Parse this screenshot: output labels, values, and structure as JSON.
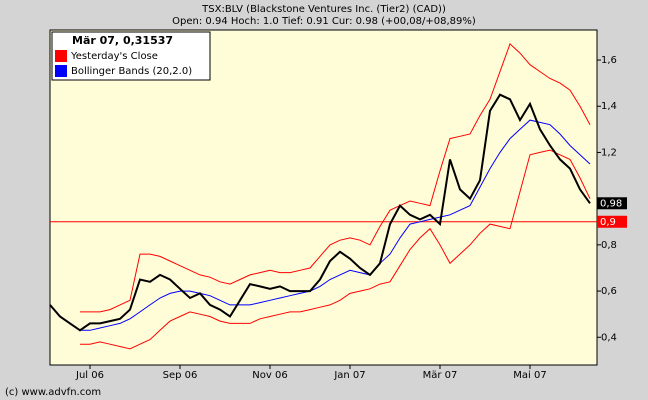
{
  "chart_data": {
    "type": "line",
    "title": "TSX:BLV (Blackstone Ventures Inc. (Tier2) (CAD))",
    "subtitle": "Open: 0.94 Hoch: 1.0 Tief: 0.91 Cur: 0.98 (+00,08/+08,89%)",
    "legend_header": "Mär 07, 0,31537",
    "footer": "(c) www.advfn.com",
    "categories": [
      null,
      null,
      null,
      null,
      "Jul 06",
      null,
      null,
      null,
      null,
      null,
      null,
      null,
      null,
      "Sep 06",
      null,
      null,
      null,
      null,
      null,
      null,
      null,
      null,
      "Nov 06",
      null,
      null,
      null,
      null,
      null,
      null,
      null,
      "Jan 07",
      null,
      null,
      null,
      null,
      null,
      null,
      null,
      null,
      "Mär 07",
      null,
      null,
      null,
      null,
      null,
      null,
      null,
      null,
      "Mai 07",
      null,
      null,
      null,
      null,
      null,
      null
    ],
    "ylim": [
      0.28,
      1.73
    ],
    "yticks": [
      {
        "value": 0.4,
        "label": "0,4"
      },
      {
        "value": 0.6,
        "label": "0,6"
      },
      {
        "value": 0.8,
        "label": "0,8"
      },
      {
        "value": 1.2,
        "label": "1,2"
      },
      {
        "value": 1.4,
        "label": "1,4"
      },
      {
        "value": 1.6,
        "label": "1,6"
      }
    ],
    "legend_position": "top-left",
    "series": [
      {
        "color": "#000000",
        "values": [
          0.54,
          0.49,
          0.46,
          0.43,
          0.46,
          0.46,
          0.47,
          0.48,
          0.52,
          0.65,
          0.64,
          0.67,
          0.65,
          0.61,
          0.57,
          0.59,
          0.54,
          0.52,
          0.49,
          0.56,
          0.63,
          0.62,
          0.61,
          0.62,
          0.6,
          0.6,
          0.6,
          0.65,
          0.73,
          0.77,
          0.74,
          0.7,
          0.67,
          0.72,
          0.89,
          0.97,
          0.93,
          0.91,
          0.93,
          0.89,
          1.17,
          1.04,
          1.0,
          1.08,
          1.38,
          1.45,
          1.43,
          1.34,
          1.41,
          1.3,
          1.23,
          1.17,
          1.13,
          1.04,
          0.98
        ]
      },
      {
        "name": "Bollinger Bands (20,2.0)",
        "color": "#0000ff",
        "values": [
          null,
          null,
          null,
          0.43,
          0.43,
          0.44,
          0.45,
          0.46,
          0.48,
          0.51,
          0.54,
          0.57,
          0.59,
          0.6,
          0.6,
          0.59,
          0.58,
          0.56,
          0.54,
          0.54,
          0.54,
          0.55,
          0.56,
          0.57,
          0.58,
          0.59,
          0.6,
          0.62,
          0.65,
          0.67,
          0.69,
          0.68,
          0.67,
          0.72,
          0.76,
          0.83,
          0.89,
          0.9,
          0.91,
          0.92,
          0.93,
          0.95,
          0.97,
          1.05,
          1.13,
          1.2,
          1.26,
          1.3,
          1.34,
          1.33,
          1.32,
          1.28,
          1.23,
          1.19,
          1.15
        ]
      },
      {
        "color": "#ff0000",
        "values": [
          null,
          null,
          null,
          0.51,
          0.51,
          0.51,
          0.52,
          0.54,
          0.56,
          0.76,
          0.76,
          0.75,
          0.73,
          0.71,
          0.69,
          0.67,
          0.66,
          0.64,
          0.63,
          0.65,
          0.67,
          0.68,
          0.69,
          0.68,
          0.68,
          0.69,
          0.7,
          0.75,
          0.8,
          0.82,
          0.83,
          0.82,
          0.8,
          0.88,
          0.95,
          0.97,
          0.99,
          0.98,
          0.97,
          1.12,
          1.26,
          1.27,
          1.28,
          1.36,
          1.43,
          1.55,
          1.67,
          1.63,
          1.58,
          1.55,
          1.52,
          1.5,
          1.47,
          1.4,
          1.32
        ]
      },
      {
        "color": "#ff0000",
        "values": [
          null,
          null,
          null,
          0.37,
          0.37,
          0.38,
          0.37,
          0.36,
          0.35,
          0.37,
          0.39,
          0.43,
          0.47,
          0.49,
          0.51,
          0.5,
          0.49,
          0.47,
          0.46,
          0.46,
          0.46,
          0.48,
          0.49,
          0.5,
          0.51,
          0.51,
          0.52,
          0.53,
          0.54,
          0.56,
          0.59,
          0.6,
          0.61,
          0.63,
          0.64,
          0.71,
          0.78,
          0.83,
          0.87,
          0.8,
          0.72,
          0.76,
          0.8,
          0.85,
          0.89,
          0.88,
          0.87,
          1.03,
          1.19,
          1.2,
          1.21,
          1.19,
          1.17,
          1.09,
          1.0
        ]
      }
    ],
    "reference_line": {
      "name": "Yesterday's Close",
      "value": 0.9,
      "label": "0,9",
      "color": "#ff0000"
    },
    "last_value": {
      "value": 0.98,
      "label": "0,98",
      "color": "#000000"
    }
  }
}
